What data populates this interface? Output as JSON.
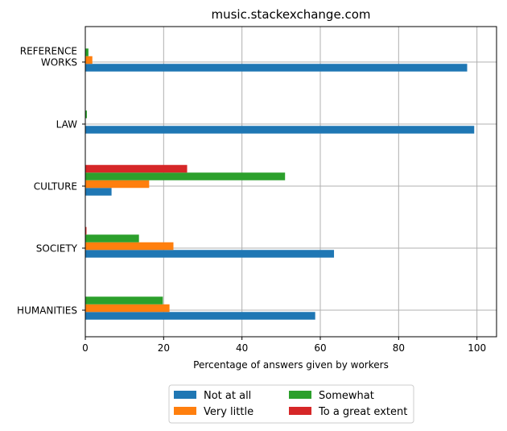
{
  "chart_data": {
    "type": "bar",
    "orientation": "horizontal",
    "title": "music.stackexchange.com",
    "xlabel": "Percentage of answers given by workers",
    "ylabel": "",
    "xlim": [
      0,
      105
    ],
    "xticks": [
      0,
      20,
      40,
      60,
      80,
      100
    ],
    "grid": true,
    "legend_position": "bottom-center",
    "categories": [
      [
        "REFERENCE",
        "WORKS"
      ],
      [
        "LAW"
      ],
      [
        "CULTURE"
      ],
      [
        "SOCIETY"
      ],
      [
        "HUMANITIES"
      ]
    ],
    "series": [
      {
        "name": "Not at all",
        "color": "#1f77b4",
        "values": [
          97.5,
          99.3,
          6.7,
          63.5,
          58.7
        ]
      },
      {
        "name": "Very little",
        "color": "#ff7f0e",
        "values": [
          1.8,
          0.0,
          16.3,
          22.5,
          21.5
        ]
      },
      {
        "name": "Somewhat",
        "color": "#2ca02c",
        "values": [
          0.8,
          0.4,
          51.0,
          13.7,
          19.8
        ]
      },
      {
        "name": "To a great extent",
        "color": "#d62728",
        "values": [
          0.0,
          0.0,
          26.0,
          0.3,
          0.0
        ]
      }
    ]
  }
}
